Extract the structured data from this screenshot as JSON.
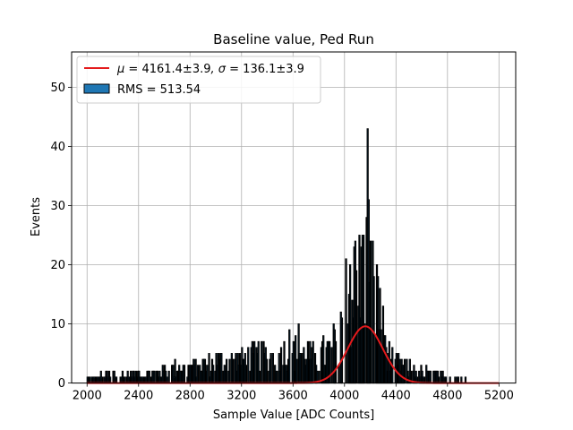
{
  "chart_data": {
    "type": "histogram",
    "title": "Baseline value, Ped Run",
    "xlabel": "Sample Value [ADC Counts]",
    "ylabel": "Events",
    "xlim": [
      1880,
      5330
    ],
    "ylim": [
      0,
      56
    ],
    "xticks": [
      2000,
      2400,
      2800,
      3200,
      3600,
      4000,
      4400,
      4800,
      5200
    ],
    "yticks": [
      0,
      10,
      20,
      30,
      40,
      50
    ],
    "grid": true,
    "legend_placement": "upper-left",
    "colors": {
      "histogram_fill": "#1f77b4",
      "histogram_edge": "#000000",
      "fit_line": "#e41a1c",
      "grid": "#b0b0b0"
    },
    "fit": {
      "label_prefix": "μ = ",
      "mu_text": "4161.4±3.9",
      "sigma_prefix": ", σ = ",
      "sigma_text": "136.1±3.9",
      "mu": 4161.4,
      "sigma": 136.1,
      "amplitude": 9.6,
      "x_range": [
        2000,
        5200
      ]
    },
    "histogram": {
      "label": "RMS = 513.54",
      "bin_width": 8,
      "x_range": [
        2000,
        5200
      ],
      "envelope": [
        [
          2000,
          0.4
        ],
        [
          2100,
          1.2
        ],
        [
          2300,
          1.3
        ],
        [
          2500,
          1.6
        ],
        [
          2700,
          2.4
        ],
        [
          2900,
          3.0
        ],
        [
          3100,
          3.6
        ],
        [
          3300,
          4.2
        ],
        [
          3500,
          4.7
        ],
        [
          3650,
          5.0
        ],
        [
          3800,
          4.3
        ],
        [
          3900,
          5.5
        ],
        [
          3950,
          8.0
        ],
        [
          4000,
          11.0
        ],
        [
          4040,
          13.5
        ],
        [
          4080,
          15.5
        ],
        [
          4110,
          17.0
        ],
        [
          4150,
          20.0
        ],
        [
          4170,
          25.0
        ],
        [
          4185,
          30.0
        ],
        [
          4200,
          21.0
        ],
        [
          4230,
          13.0
        ],
        [
          4260,
          13.0
        ],
        [
          4290,
          9.0
        ],
        [
          4330,
          5.0
        ],
        [
          4400,
          3.2
        ],
        [
          4500,
          2.5
        ],
        [
          4600,
          1.8
        ],
        [
          4700,
          1.3
        ],
        [
          4850,
          0.6
        ],
        [
          5000,
          0.4
        ],
        [
          5200,
          0.3
        ]
      ],
      "peaks": [
        {
          "x": 4009,
          "y": 21
        },
        {
          "x": 4041,
          "y": 20
        },
        {
          "x": 4078,
          "y": 23
        },
        {
          "x": 4085,
          "y": 24
        },
        {
          "x": 4129,
          "y": 23
        },
        {
          "x": 4138,
          "y": 25
        },
        {
          "x": 4145,
          "y": 25
        },
        {
          "x": 4178,
          "y": 34
        },
        {
          "x": 4182,
          "y": 43
        },
        {
          "x": 4190,
          "y": 31
        },
        {
          "x": 4258,
          "y": 18
        },
        {
          "x": 4273,
          "y": 16
        },
        {
          "x": 4305,
          "y": 8
        },
        {
          "x": 3975,
          "y": 12
        },
        {
          "x": 3645,
          "y": 10
        },
        {
          "x": 3570,
          "y": 9
        }
      ]
    }
  }
}
